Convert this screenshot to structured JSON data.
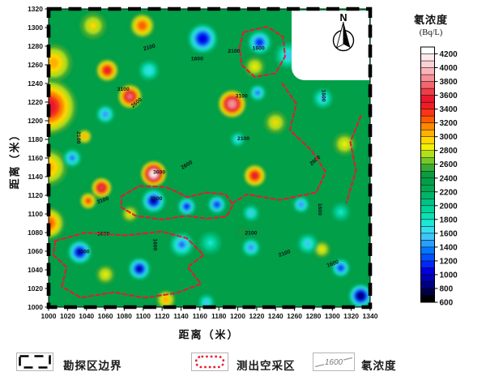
{
  "figure": {
    "x_axis_title": "距离（米）",
    "y_axis_title": "距离（米）",
    "north_label": "N"
  },
  "colorbar": {
    "title": "氡浓度",
    "units": "(Bq/L)",
    "min": 600,
    "max": 4300,
    "cell_step": 100,
    "tick_values": [
      600,
      800,
      1000,
      1200,
      1400,
      1600,
      1800,
      2000,
      2200,
      2400,
      2600,
      2800,
      3000,
      3200,
      3400,
      3600,
      3800,
      4000,
      4200
    ],
    "colors": [
      "#000000",
      "#00004a",
      "#000080",
      "#0000b4",
      "#0000e0",
      "#0028f8",
      "#0050ff",
      "#0078ff",
      "#26a0ff",
      "#40c4fa",
      "#34dff0",
      "#1ce8d4",
      "#0ce0b2",
      "#00d49a",
      "#00c384",
      "#00b368",
      "#00a854",
      "#009f48",
      "#0d9a41",
      "#36aa35",
      "#74c629",
      "#b2e018",
      "#f2f005",
      "#ffd800",
      "#ffb000",
      "#ff8800",
      "#ff5c00",
      "#fa3414",
      "#f01c24",
      "#e8182e",
      "#ee3d46",
      "#f3666e",
      "#f78f96",
      "#fab3b9",
      "#fcd0d4",
      "#fee9eb",
      "#ffffff"
    ]
  },
  "legend": {
    "items": [
      {
        "label": "勘探区边界",
        "swatch": "black-dashed-boundary"
      },
      {
        "label": "测出空采区",
        "swatch": "red-dotted-zone"
      },
      {
        "label": "氡浓度",
        "swatch": "contour-line",
        "swatch_text": "1600"
      }
    ]
  },
  "chart_data": {
    "type": "heatmap",
    "subtype": "filled-contour-map",
    "title": "",
    "xlabel": "距离（米）",
    "ylabel": "距离（米）",
    "zlabel": "氡浓度 (Bq/L)",
    "xlim": [
      1000,
      1340
    ],
    "ylim": [
      1000,
      1320
    ],
    "zlim": [
      600,
      4300
    ],
    "grid": false,
    "legend_position": "right",
    "base_level": 2300,
    "xticks": [
      1000,
      1020,
      1040,
      1060,
      1080,
      1100,
      1120,
      1140,
      1160,
      1180,
      1200,
      1220,
      1240,
      1260,
      1280,
      1300,
      1320,
      1340
    ],
    "yticks": [
      1000,
      1020,
      1040,
      1060,
      1080,
      1100,
      1120,
      1140,
      1160,
      1180,
      1200,
      1220,
      1240,
      1260,
      1280,
      1300,
      1320
    ],
    "features": [
      {
        "x": 1000,
        "y": 1215,
        "value": 3500,
        "r": 30
      },
      {
        "x": 1005,
        "y": 1262,
        "value": 3000,
        "r": 20
      },
      {
        "x": 1000,
        "y": 1150,
        "value": 3000,
        "r": 20
      },
      {
        "x": 1000,
        "y": 1090,
        "value": 3200,
        "r": 17
      },
      {
        "x": 1047,
        "y": 1302,
        "value": 2900,
        "r": 14
      },
      {
        "x": 1099,
        "y": 1302,
        "value": 3200,
        "r": 13
      },
      {
        "x": 1163,
        "y": 1288,
        "value": 1000,
        "r": 16
      },
      {
        "x": 1223,
        "y": 1284,
        "value": 1100,
        "r": 13
      },
      {
        "x": 1253,
        "y": 1270,
        "value": 1500,
        "r": 14
      },
      {
        "x": 1062,
        "y": 1254,
        "value": 3400,
        "r": 12
      },
      {
        "x": 1106,
        "y": 1254,
        "value": 1600,
        "r": 11
      },
      {
        "x": 1218,
        "y": 1258,
        "value": 2800,
        "r": 11
      },
      {
        "x": 1086,
        "y": 1226,
        "value": 3700,
        "r": 13
      },
      {
        "x": 1060,
        "y": 1207,
        "value": 1400,
        "r": 10
      },
      {
        "x": 1038,
        "y": 1183,
        "value": 3000,
        "r": 8
      },
      {
        "x": 1194,
        "y": 1218,
        "value": 3800,
        "r": 15
      },
      {
        "x": 1221,
        "y": 1230,
        "value": 1300,
        "r": 9
      },
      {
        "x": 1240,
        "y": 1198,
        "value": 2900,
        "r": 12
      },
      {
        "x": 1200,
        "y": 1180,
        "value": 1600,
        "r": 8
      },
      {
        "x": 1313,
        "y": 1175,
        "value": 2800,
        "r": 12
      },
      {
        "x": 1290,
        "y": 1224,
        "value": 1500,
        "r": 11
      },
      {
        "x": 1111,
        "y": 1143,
        "value": 4100,
        "r": 14
      },
      {
        "x": 1025,
        "y": 1160,
        "value": 1300,
        "r": 10
      },
      {
        "x": 1056,
        "y": 1128,
        "value": 3600,
        "r": 11
      },
      {
        "x": 1111,
        "y": 1114,
        "value": 900,
        "r": 13
      },
      {
        "x": 1146,
        "y": 1108,
        "value": 1100,
        "r": 10
      },
      {
        "x": 1178,
        "y": 1110,
        "value": 1200,
        "r": 10
      },
      {
        "x": 1218,
        "y": 1141,
        "value": 3400,
        "r": 12
      },
      {
        "x": 1042,
        "y": 1114,
        "value": 3300,
        "r": 9
      },
      {
        "x": 1086,
        "y": 1100,
        "value": 2900,
        "r": 9
      },
      {
        "x": 1033,
        "y": 1059,
        "value": 1000,
        "r": 13
      },
      {
        "x": 1060,
        "y": 1035,
        "value": 2800,
        "r": 10
      },
      {
        "x": 1096,
        "y": 1041,
        "value": 900,
        "r": 12
      },
      {
        "x": 1141,
        "y": 1067,
        "value": 1300,
        "r": 13
      },
      {
        "x": 1124,
        "y": 1008,
        "value": 3000,
        "r": 10
      },
      {
        "x": 1167,
        "y": 1005,
        "value": 1500,
        "r": 9
      },
      {
        "x": 1171,
        "y": 1069,
        "value": 1700,
        "r": 12
      },
      {
        "x": 1205,
        "y": 1080,
        "value": 2400,
        "r": 10
      },
      {
        "x": 1214,
        "y": 1064,
        "value": 1400,
        "r": 10
      },
      {
        "x": 1289,
        "y": 1062,
        "value": 2800,
        "r": 9
      },
      {
        "x": 1274,
        "y": 1068,
        "value": 1500,
        "r": 11
      },
      {
        "x": 1309,
        "y": 1102,
        "value": 1700,
        "r": 10
      },
      {
        "x": 1214,
        "y": 1101,
        "value": 1500,
        "r": 9
      },
      {
        "x": 1267,
        "y": 1110,
        "value": 1400,
        "r": 9
      },
      {
        "x": 1330,
        "y": 1012,
        "value": 800,
        "r": 13
      },
      {
        "x": 1309,
        "y": 1042,
        "value": 1200,
        "r": 10
      }
    ],
    "contour_labels": [
      {
        "x": 1107,
        "y": 1277,
        "text": "2100",
        "rot": -15
      },
      {
        "x": 1157,
        "y": 1265,
        "text": "1600",
        "rot": 0
      },
      {
        "x": 1196,
        "y": 1273,
        "text": "2100",
        "rot": 0
      },
      {
        "x": 1222,
        "y": 1276,
        "text": "1600",
        "rot": 0
      },
      {
        "x": 1079,
        "y": 1232,
        "text": "3100",
        "rot": 0
      },
      {
        "x": 1094,
        "y": 1218,
        "text": "2600",
        "rot": -40
      },
      {
        "x": 1030,
        "y": 1182,
        "text": "2100",
        "rot": 90
      },
      {
        "x": 1147,
        "y": 1151,
        "text": "2600",
        "rot": -30
      },
      {
        "x": 1117,
        "y": 1143,
        "text": "3600",
        "rot": 0
      },
      {
        "x": 1114,
        "y": 1115,
        "text": "1100",
        "rot": 0
      },
      {
        "x": 1204,
        "y": 1225,
        "text": "3100",
        "rot": 0
      },
      {
        "x": 1206,
        "y": 1179,
        "text": "2100",
        "rot": 0
      },
      {
        "x": 1289,
        "y": 1227,
        "text": "1600",
        "rot": 90
      },
      {
        "x": 1283,
        "y": 1156,
        "text": "2600",
        "rot": -40
      },
      {
        "x": 1058,
        "y": 1113,
        "text": "3100",
        "rot": -20
      },
      {
        "x": 1058,
        "y": 1077,
        "text": "1600",
        "rot": 0
      },
      {
        "x": 1037,
        "y": 1058,
        "text": "1100",
        "rot": 0
      },
      {
        "x": 1250,
        "y": 1056,
        "text": "2100",
        "rot": -20
      },
      {
        "x": 1301,
        "y": 1045,
        "text": "1600",
        "rot": -20
      },
      {
        "x": 1214,
        "y": 1078,
        "text": "2100",
        "rot": 0
      },
      {
        "x": 1111,
        "y": 1067,
        "text": "1600",
        "rot": 90
      },
      {
        "x": 1285,
        "y": 1105,
        "text": "1600",
        "rot": 90
      }
    ],
    "mined_out_zones": [
      {
        "closed": true,
        "points": [
          [
            1206,
            1295
          ],
          [
            1231,
            1301
          ],
          [
            1248,
            1290
          ],
          [
            1250,
            1269
          ],
          [
            1240,
            1251
          ],
          [
            1218,
            1247
          ],
          [
            1204,
            1260
          ],
          [
            1202,
            1279
          ]
        ]
      },
      {
        "closed": false,
        "points": [
          [
            1247,
            1240
          ],
          [
            1262,
            1218
          ],
          [
            1255,
            1190
          ],
          [
            1278,
            1168
          ],
          [
            1293,
            1145
          ],
          [
            1283,
            1123
          ],
          [
            1244,
            1115
          ],
          [
            1210,
            1121
          ],
          [
            1195,
            1112
          ]
        ]
      },
      {
        "closed": true,
        "points": [
          [
            1077,
            1119
          ],
          [
            1096,
            1130
          ],
          [
            1124,
            1129
          ],
          [
            1147,
            1118
          ],
          [
            1167,
            1123
          ],
          [
            1187,
            1121
          ],
          [
            1195,
            1110
          ],
          [
            1188,
            1097
          ],
          [
            1167,
            1095
          ],
          [
            1146,
            1098
          ],
          [
            1120,
            1094
          ],
          [
            1092,
            1098
          ],
          [
            1077,
            1107
          ]
        ]
      },
      {
        "closed": true,
        "points": [
          [
            1007,
            1071
          ],
          [
            1039,
            1080
          ],
          [
            1081,
            1077
          ],
          [
            1120,
            1081
          ],
          [
            1146,
            1074
          ],
          [
            1164,
            1056
          ],
          [
            1147,
            1043
          ],
          [
            1161,
            1025
          ],
          [
            1135,
            1015
          ],
          [
            1101,
            1010
          ],
          [
            1069,
            1016
          ],
          [
            1034,
            1010
          ],
          [
            1014,
            1022
          ],
          [
            1019,
            1043
          ],
          [
            1005,
            1056
          ]
        ]
      },
      {
        "closed": false,
        "points": [
          [
            1330,
            1205
          ],
          [
            1319,
            1177
          ],
          [
            1325,
            1147
          ],
          [
            1315,
            1112
          ]
        ]
      }
    ]
  }
}
